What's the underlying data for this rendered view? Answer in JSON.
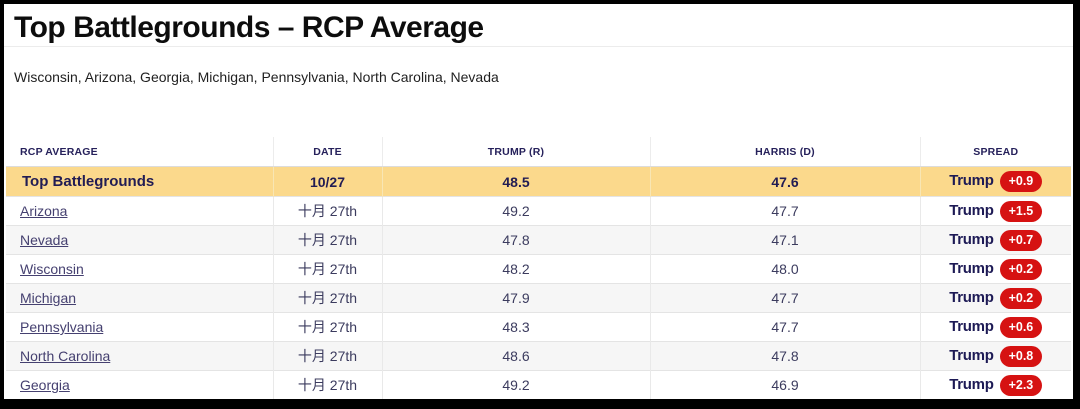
{
  "page": {
    "title": "Top Battlegrounds – RCP Average",
    "subtitle": "Wisconsin, Arizona, Georgia, Michigan, Pennsylvania, North Carolina, Nevada"
  },
  "colors": {
    "highlight_yellow": "#fbd98c",
    "badge_red": "#d61212",
    "navy_text": "#211c54",
    "link_purple": "#454070"
  },
  "table": {
    "headers": [
      "RCP AVERAGE",
      "DATE",
      "TRUMP (R)",
      "HARRIS (D)",
      "SPREAD"
    ],
    "highlight_row": {
      "label": "Top Battlegrounds",
      "date": "10/27",
      "trump": "48.5",
      "harris": "47.6",
      "spread_party": "Trump",
      "spread_value": "+0.9"
    },
    "rows": [
      {
        "state": "Arizona",
        "date": "十月 27th",
        "trump": "49.2",
        "harris": "47.7",
        "spread_party": "Trump",
        "spread_value": "+1.5"
      },
      {
        "state": "Nevada",
        "date": "十月 27th",
        "trump": "47.8",
        "harris": "47.1",
        "spread_party": "Trump",
        "spread_value": "+0.7"
      },
      {
        "state": "Wisconsin",
        "date": "十月 27th",
        "trump": "48.2",
        "harris": "48.0",
        "spread_party": "Trump",
        "spread_value": "+0.2"
      },
      {
        "state": "Michigan",
        "date": "十月 27th",
        "trump": "47.9",
        "harris": "47.7",
        "spread_party": "Trump",
        "spread_value": "+0.2"
      },
      {
        "state": "Pennsylvania",
        "date": "十月 27th",
        "trump": "48.3",
        "harris": "47.7",
        "spread_party": "Trump",
        "spread_value": "+0.6"
      },
      {
        "state": "North Carolina",
        "date": "十月 27th",
        "trump": "48.6",
        "harris": "47.8",
        "spread_party": "Trump",
        "spread_value": "+0.8"
      },
      {
        "state": "Georgia",
        "date": "十月 27th",
        "trump": "49.2",
        "harris": "46.9",
        "spread_party": "Trump",
        "spread_value": "+2.3"
      }
    ]
  }
}
